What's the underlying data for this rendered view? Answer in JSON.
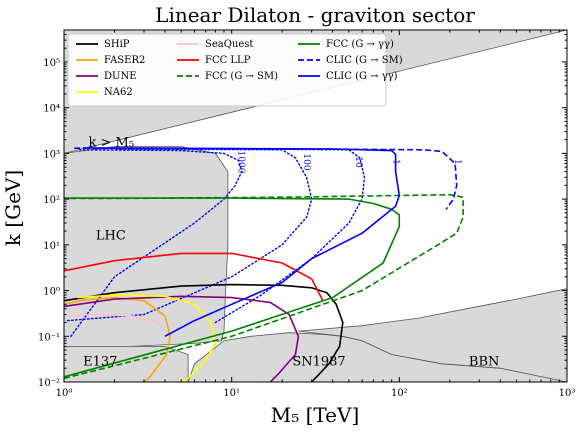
{
  "chart_data": {
    "type": "line",
    "title": "Linear Dilaton - graviton sector",
    "xlabel": "M₅ [TeV]",
    "ylabel": "k [GeV]",
    "xscale": "log",
    "yscale": "log",
    "xlim": [
      1,
      1000
    ],
    "ylim": [
      0.01,
      500000
    ],
    "xticks": [
      {
        "value": 1,
        "label": "10⁰"
      },
      {
        "value": 10,
        "label": "10¹"
      },
      {
        "value": 100,
        "label": "10²"
      },
      {
        "value": 1000,
        "label": "10³"
      }
    ],
    "yticks": [
      {
        "value": 0.01,
        "label": "10⁻²"
      },
      {
        "value": 0.1,
        "label": "10⁻¹"
      },
      {
        "value": 1,
        "label": "10⁰"
      },
      {
        "value": 10,
        "label": "10¹"
      },
      {
        "value": 100,
        "label": "10²"
      },
      {
        "value": 1000,
        "label": "10³"
      },
      {
        "value": 10000,
        "label": "10⁴"
      },
      {
        "value": 100000,
        "label": "10⁵"
      }
    ],
    "regions": [
      {
        "label": "k > M₅",
        "points": [
          [
            1,
            1000
          ],
          [
            1000,
            500000
          ],
          [
            1,
            500000
          ]
        ]
      },
      {
        "label": "LHC",
        "points": [
          [
            1,
            0.01
          ],
          [
            1,
            1000
          ],
          [
            2,
            1400
          ],
          [
            5,
            1400
          ],
          [
            8,
            1000
          ],
          [
            9.5,
            400
          ],
          [
            9.5,
            10
          ],
          [
            9.2,
            1
          ],
          [
            9,
            0.13
          ],
          [
            8.7,
            0.08
          ],
          [
            6,
            0.07
          ],
          [
            2.5,
            0.06
          ],
          [
            1,
            0.06
          ]
        ]
      },
      {
        "label": "E137",
        "points": [
          [
            1,
            0.01
          ],
          [
            1,
            0.06
          ],
          [
            4,
            0.06
          ],
          [
            5.5,
            0.04
          ],
          [
            5.5,
            0.01
          ]
        ]
      },
      {
        "label": "SN1987",
        "points": [
          [
            5.5,
            0.01
          ],
          [
            6,
            0.025
          ],
          [
            9,
            0.08
          ],
          [
            13,
            0.1
          ],
          [
            22,
            0.12
          ],
          [
            35,
            0.11
          ],
          [
            46,
            0.1
          ],
          [
            60,
            0.08
          ],
          [
            90,
            0.04
          ],
          [
            180,
            0.025
          ],
          [
            400,
            0.02
          ],
          [
            1000,
            0.018
          ],
          [
            1000,
            0.01
          ]
        ]
      },
      {
        "label": "BBN",
        "points": [
          [
            25,
            0.13
          ],
          [
            60,
            0.17
          ],
          [
            130,
            0.25
          ],
          [
            250,
            0.4
          ],
          [
            500,
            0.65
          ],
          [
            1000,
            1.1
          ],
          [
            1000,
            0.01
          ],
          [
            400,
            0.02
          ],
          [
            180,
            0.025
          ],
          [
            90,
            0.04
          ],
          [
            60,
            0.08
          ],
          [
            46,
            0.1
          ]
        ]
      }
    ],
    "region_labels": [
      {
        "text": "k > M₅",
        "x": 1.4,
        "y": 1400
      },
      {
        "text": "LHC",
        "x": 1.55,
        "y": 13
      },
      {
        "text": "E137",
        "x": 1.3,
        "y": 0.023
      },
      {
        "text": "SN1987",
        "x": 23,
        "y": 0.023
      },
      {
        "text": "BBN",
        "x": 260,
        "y": 0.023
      }
    ],
    "series": [
      {
        "name": "SHiP",
        "color": "#000000",
        "dash": "solid",
        "points": [
          [
            1,
            0.6
          ],
          [
            2,
            0.9
          ],
          [
            5,
            1.25
          ],
          [
            10,
            1.35
          ],
          [
            20,
            1.3
          ],
          [
            30,
            1.15
          ],
          [
            37,
            0.9
          ],
          [
            42,
            0.5
          ],
          [
            46,
            0.2
          ],
          [
            44,
            0.06
          ],
          [
            38,
            0.025
          ],
          [
            30,
            0.01
          ]
        ]
      },
      {
        "name": "FASER2",
        "color": "#ffa500",
        "dash": "solid",
        "points": [
          [
            1,
            0.5
          ],
          [
            1.3,
            0.62
          ],
          [
            2,
            0.7
          ],
          [
            3,
            0.6
          ],
          [
            4,
            0.28
          ],
          [
            4.3,
            0.1
          ],
          [
            4.1,
            0.04
          ],
          [
            3.2,
            0.012
          ],
          [
            3,
            0.01
          ]
        ]
      },
      {
        "name": "DUNE",
        "color": "#800080",
        "dash": "solid",
        "points": [
          [
            1,
            0.45
          ],
          [
            2,
            0.65
          ],
          [
            5,
            0.75
          ],
          [
            10,
            0.7
          ],
          [
            17,
            0.55
          ],
          [
            22,
            0.3
          ],
          [
            25,
            0.1
          ],
          [
            24,
            0.04
          ],
          [
            19,
            0.015
          ],
          [
            17,
            0.01
          ]
        ]
      },
      {
        "name": "NA62",
        "color": "#ffff00",
        "dash": "solid",
        "points": [
          [
            1.2,
            0.7
          ],
          [
            2,
            0.8
          ],
          [
            4,
            0.75
          ],
          [
            6,
            0.5
          ],
          [
            7.5,
            0.2
          ],
          [
            8,
            0.07
          ],
          [
            7,
            0.03
          ],
          [
            5.5,
            0.012
          ],
          [
            5,
            0.01
          ]
        ]
      },
      {
        "name": "SeaQuest",
        "color": "#ffc0cb",
        "dash": "solid",
        "points": [
          [
            1.05,
            0.28
          ],
          [
            1.5,
            0.3
          ],
          [
            2.5,
            0.28
          ],
          [
            3.5,
            0.22
          ],
          [
            4,
            0.15
          ]
        ]
      },
      {
        "name": "FCC LLP",
        "color": "#ff0000",
        "dash": "solid",
        "points": [
          [
            1,
            2.7
          ],
          [
            2,
            4.5
          ],
          [
            5,
            6.5
          ],
          [
            10,
            6.5
          ],
          [
            20,
            4
          ],
          [
            30,
            1.8
          ],
          [
            35,
            0.6
          ]
        ]
      },
      {
        "name": "FCC (G → SM)",
        "color": "#008000",
        "dash": "dashed",
        "points": [
          [
            1,
            0.012
          ],
          [
            10,
            0.1
          ],
          [
            60,
            1
          ],
          [
            170,
            10
          ],
          [
            220,
            18
          ],
          [
            240,
            40
          ],
          [
            240,
            110
          ],
          [
            200,
            125
          ],
          [
            100,
            120
          ],
          [
            20,
            110
          ],
          [
            2,
            103
          ],
          [
            1,
            103
          ]
        ]
      },
      {
        "name": "FCC (G → γγ)",
        "color": "#008000",
        "dash": "solid",
        "points": [
          [
            1,
            0.013
          ],
          [
            10,
            0.13
          ],
          [
            40,
            0.7
          ],
          [
            80,
            4
          ],
          [
            100,
            25
          ],
          [
            100,
            45
          ],
          [
            90,
            60
          ],
          [
            70,
            80
          ],
          [
            50,
            100
          ],
          [
            10,
            105
          ],
          [
            1,
            105
          ]
        ]
      },
      {
        "name": "CLIC (G → SM)",
        "color": "#0000ff",
        "dash": "dashed",
        "points": [
          [
            1.15,
            1300
          ],
          [
            30,
            1250
          ],
          [
            140,
            1200
          ],
          [
            180,
            1100
          ],
          [
            215,
            600
          ],
          [
            220,
            200
          ],
          [
            210,
            100
          ],
          [
            190,
            60
          ]
        ]
      },
      {
        "name": "CLIC (G → γγ)",
        "color": "#0000ff",
        "dash": "solid",
        "points": [
          [
            1.3,
            1320
          ],
          [
            40,
            1250
          ],
          [
            90,
            1150
          ],
          [
            95,
            950
          ],
          [
            95,
            400
          ],
          [
            100,
            120
          ],
          [
            95,
            70
          ],
          [
            60,
            18
          ],
          [
            30,
            5
          ],
          [
            20,
            1.5
          ],
          [
            10,
            0.5
          ],
          [
            6,
            0.22
          ],
          [
            4,
            0.1
          ]
        ]
      }
    ],
    "extra_lines": [
      {
        "color": "#0000ff",
        "dash": "dotted",
        "points": [
          [
            1.1,
            0.1
          ],
          [
            2,
            2
          ],
          [
            6,
            30
          ],
          [
            9,
            100
          ],
          [
            10.5,
            200
          ],
          [
            11.5,
            400
          ],
          [
            11,
            700
          ],
          [
            9,
            1000
          ],
          [
            5,
            1150
          ],
          [
            1.2,
            1200
          ]
        ]
      },
      {
        "color": "#0000ff",
        "dash": "dotted",
        "points": [
          [
            1.05,
            0.22
          ],
          [
            3,
            0.3
          ],
          [
            10,
            2
          ],
          [
            20,
            10
          ],
          [
            28,
            40
          ],
          [
            30,
            100
          ],
          [
            28,
            300
          ],
          [
            24,
            800
          ],
          [
            20,
            1200
          ],
          [
            2,
            1250
          ]
        ]
      },
      {
        "color": "#0000ff",
        "dash": "dotted",
        "points": [
          [
            8,
            0.2
          ],
          [
            15,
            0.8
          ],
          [
            30,
            5
          ],
          [
            50,
            30
          ],
          [
            60,
            100
          ],
          [
            62,
            300
          ],
          [
            58,
            800
          ],
          [
            50,
            1200
          ],
          [
            5,
            1260
          ]
        ]
      }
    ],
    "contour_labels": [
      {
        "text": "1000",
        "x": 11,
        "y": 650
      },
      {
        "text": "100",
        "x": 27,
        "y": 650
      },
      {
        "text": "10",
        "x": 55,
        "y": 650
      },
      {
        "text": "1",
        "x": 92,
        "y": 650
      },
      {
        "text": "1",
        "x": 215,
        "y": 650
      }
    ]
  }
}
